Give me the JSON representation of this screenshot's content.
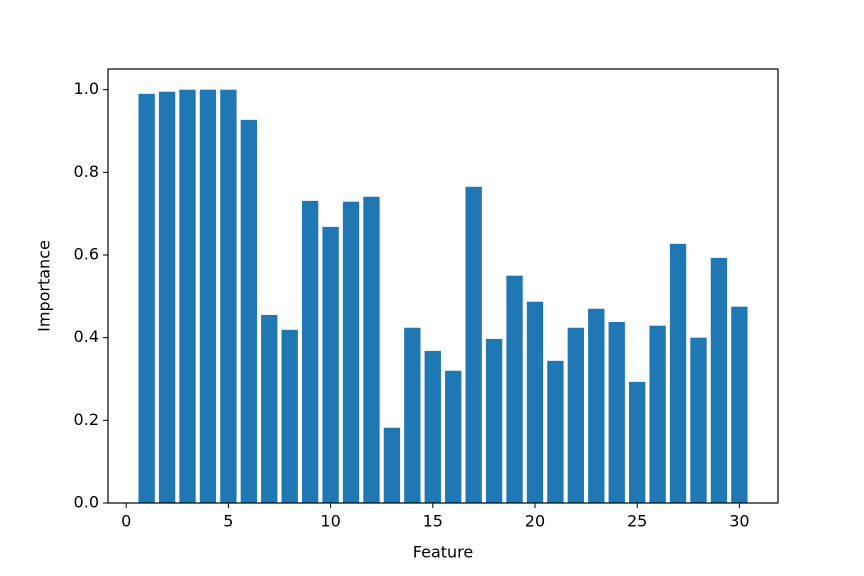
{
  "chart_data": {
    "type": "bar",
    "x_label": "Feature",
    "y_label": "Importance",
    "x": [
      1,
      2,
      3,
      4,
      5,
      6,
      7,
      8,
      9,
      10,
      11,
      12,
      13,
      14,
      15,
      16,
      17,
      18,
      19,
      20,
      21,
      22,
      23,
      24,
      25,
      26,
      27,
      28,
      29,
      30
    ],
    "values": [
      0.99,
      0.995,
      1.0,
      1.0,
      1.0,
      0.927,
      0.455,
      0.419,
      0.731,
      0.668,
      0.729,
      0.741,
      0.182,
      0.424,
      0.368,
      0.32,
      0.765,
      0.397,
      0.55,
      0.487,
      0.344,
      0.424,
      0.47,
      0.438,
      0.293,
      0.429,
      0.627,
      0.4,
      0.593,
      0.475
    ],
    "bar_width": 0.8,
    "color": "#1f77b4",
    "xlim": [
      -0.89,
      31.89
    ],
    "xticks": [
      0,
      5,
      10,
      15,
      20,
      25,
      30
    ],
    "ylim": [
      0,
      1.05
    ],
    "yticks": [
      {
        "value": 0,
        "label": "0.0"
      },
      {
        "value": 0.2,
        "label": "0.2"
      },
      {
        "value": 0.4,
        "label": "0.4"
      },
      {
        "value": 0.6,
        "label": "0.6"
      },
      {
        "value": 0.8,
        "label": "0.8"
      },
      {
        "value": 1.0,
        "label": "1.0"
      }
    ],
    "grid": false
  }
}
